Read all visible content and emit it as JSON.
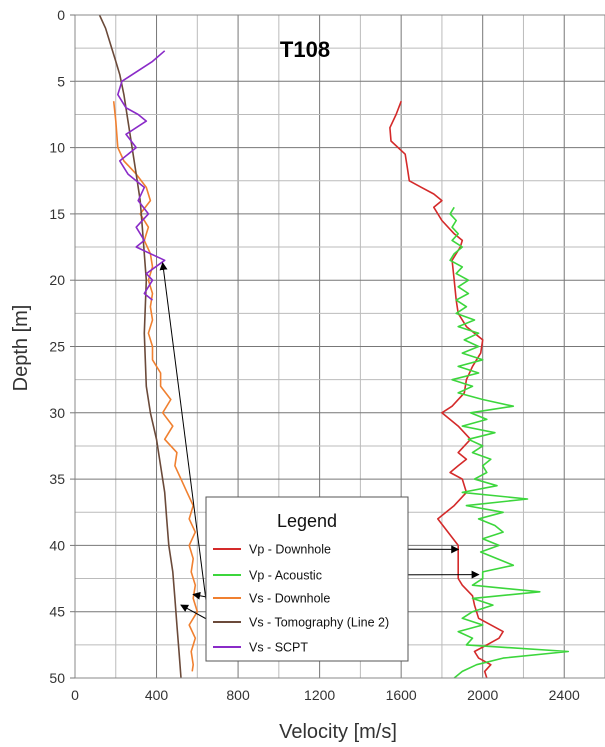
{
  "chart_data": {
    "type": "line",
    "title": "T108",
    "xlabel": "Velocity [m/s]",
    "ylabel": "Depth [m]",
    "xlim": [
      0,
      2600
    ],
    "ylim": [
      50,
      0
    ],
    "x_ticks": [
      "0",
      "400",
      "800",
      "1200",
      "1600",
      "2000",
      "2400"
    ],
    "y_ticks": [
      "0",
      "5",
      "10",
      "15",
      "20",
      "25",
      "30",
      "35",
      "40",
      "45",
      "50"
    ],
    "grid": true,
    "legend_title": "Legend",
    "legend_position": "bottom-center",
    "series": [
      {
        "name": "Vp - Downhole",
        "color": "#d42a2a",
        "points": [
          [
            1600,
            6.5
          ],
          [
            1575,
            7.5
          ],
          [
            1545,
            8.5
          ],
          [
            1550,
            9.5
          ],
          [
            1620,
            10.5
          ],
          [
            1630,
            11.5
          ],
          [
            1640,
            12.5
          ],
          [
            1700,
            13.0
          ],
          [
            1760,
            13.5
          ],
          [
            1800,
            14.0
          ],
          [
            1760,
            14.5
          ],
          [
            1800,
            15.5
          ],
          [
            1860,
            16.5
          ],
          [
            1900,
            17.0
          ],
          [
            1890,
            17.5
          ],
          [
            1850,
            18.5
          ],
          [
            1860,
            20.0
          ],
          [
            1870,
            21.5
          ],
          [
            1880,
            22.5
          ],
          [
            1920,
            23.5
          ],
          [
            2000,
            24.5
          ],
          [
            1990,
            25.5
          ],
          [
            1950,
            26.5
          ],
          [
            1920,
            27.5
          ],
          [
            1910,
            28.5
          ],
          [
            1850,
            29.5
          ],
          [
            1800,
            30.0
          ],
          [
            1880,
            31.0
          ],
          [
            1940,
            32.0
          ],
          [
            1880,
            33.0
          ],
          [
            1920,
            33.5
          ],
          [
            1880,
            34.0
          ],
          [
            1840,
            34.5
          ],
          [
            1900,
            35.0
          ],
          [
            1920,
            36.0
          ],
          [
            1860,
            37.0
          ],
          [
            1780,
            38.0
          ],
          [
            1830,
            39.0
          ],
          [
            1880,
            40.0
          ],
          [
            1880,
            41.0
          ],
          [
            1880,
            42.5
          ],
          [
            1900,
            43.0
          ],
          [
            1950,
            43.8
          ],
          [
            1960,
            44.5
          ],
          [
            1980,
            45.5
          ],
          [
            2100,
            46.5
          ],
          [
            2080,
            47.0
          ],
          [
            2020,
            47.5
          ],
          [
            1960,
            48.0
          ],
          [
            1980,
            48.5
          ],
          [
            2040,
            49.0
          ],
          [
            2010,
            49.5
          ],
          [
            2020,
            50.0
          ]
        ]
      },
      {
        "name": "Vp - Acoustic",
        "color": "#3cd63c",
        "points": [
          [
            1860,
            14.5
          ],
          [
            1840,
            15.0
          ],
          [
            1870,
            15.5
          ],
          [
            1850,
            16.0
          ],
          [
            1880,
            16.5
          ],
          [
            1850,
            17.0
          ],
          [
            1900,
            17.5
          ],
          [
            1860,
            18.0
          ],
          [
            1840,
            18.5
          ],
          [
            1900,
            19.0
          ],
          [
            1870,
            19.5
          ],
          [
            1930,
            20.0
          ],
          [
            1880,
            20.5
          ],
          [
            1930,
            21.0
          ],
          [
            1870,
            21.5
          ],
          [
            1920,
            22.0
          ],
          [
            1870,
            22.5
          ],
          [
            1960,
            23.0
          ],
          [
            1880,
            23.5
          ],
          [
            1980,
            24.0
          ],
          [
            1910,
            24.5
          ],
          [
            1980,
            25.0
          ],
          [
            1900,
            25.5
          ],
          [
            2000,
            26.0
          ],
          [
            1880,
            26.5
          ],
          [
            1980,
            27.0
          ],
          [
            1850,
            27.5
          ],
          [
            1950,
            28.0
          ],
          [
            1880,
            28.5
          ],
          [
            2000,
            29.0
          ],
          [
            2150,
            29.5
          ],
          [
            1940,
            30.0
          ],
          [
            2020,
            30.5
          ],
          [
            1900,
            31.0
          ],
          [
            2060,
            31.5
          ],
          [
            1930,
            32.0
          ],
          [
            2000,
            32.5
          ],
          [
            1950,
            33.0
          ],
          [
            2040,
            33.5
          ],
          [
            2000,
            34.0
          ],
          [
            2020,
            34.5
          ],
          [
            1960,
            35.0
          ],
          [
            2070,
            35.5
          ],
          [
            1900,
            36.0
          ],
          [
            2220,
            36.5
          ],
          [
            1920,
            37.0
          ],
          [
            2100,
            37.5
          ],
          [
            1980,
            38.0
          ],
          [
            2060,
            38.5
          ],
          [
            2100,
            39.0
          ],
          [
            2000,
            39.5
          ],
          [
            2080,
            40.0
          ],
          [
            1990,
            40.5
          ],
          [
            2150,
            41.5
          ],
          [
            2000,
            42.0
          ],
          [
            2000,
            42.5
          ],
          [
            1950,
            43.0
          ],
          [
            2280,
            43.5
          ],
          [
            1950,
            44.0
          ],
          [
            2050,
            44.5
          ],
          [
            1950,
            45.0
          ],
          [
            1900,
            45.5
          ],
          [
            2000,
            46.0
          ],
          [
            1880,
            46.5
          ],
          [
            1950,
            47.0
          ],
          [
            1920,
            47.5
          ],
          [
            2420,
            48.0
          ],
          [
            2100,
            48.5
          ],
          [
            1970,
            49.0
          ],
          [
            1900,
            49.5
          ],
          [
            1860,
            50.0
          ]
        ]
      },
      {
        "name": "Vs - Downhole",
        "color": "#f08030",
        "points": [
          [
            190,
            6.5
          ],
          [
            200,
            8.0
          ],
          [
            210,
            10.0
          ],
          [
            240,
            11.0
          ],
          [
            300,
            12.0
          ],
          [
            350,
            13.0
          ],
          [
            370,
            14.0
          ],
          [
            320,
            15.0
          ],
          [
            360,
            16.0
          ],
          [
            340,
            17.0
          ],
          [
            370,
            18.0
          ],
          [
            380,
            19.0
          ],
          [
            360,
            20.0
          ],
          [
            380,
            21.0
          ],
          [
            370,
            22.0
          ],
          [
            380,
            23.0
          ],
          [
            360,
            24.0
          ],
          [
            380,
            25.0
          ],
          [
            380,
            26.0
          ],
          [
            420,
            27.0
          ],
          [
            420,
            28.0
          ],
          [
            470,
            29.0
          ],
          [
            430,
            30.0
          ],
          [
            480,
            31.0
          ],
          [
            440,
            32.0
          ],
          [
            500,
            33.0
          ],
          [
            490,
            34.0
          ],
          [
            520,
            35.0
          ],
          [
            550,
            36.0
          ],
          [
            580,
            37.0
          ],
          [
            560,
            38.0
          ],
          [
            590,
            39.0
          ],
          [
            560,
            40.0
          ],
          [
            580,
            41.0
          ],
          [
            570,
            42.0
          ],
          [
            590,
            43.0
          ],
          [
            580,
            44.0
          ],
          [
            600,
            45.0
          ],
          [
            560,
            46.0
          ],
          [
            590,
            47.0
          ],
          [
            570,
            48.0
          ],
          [
            580,
            49.0
          ],
          [
            575,
            49.5
          ]
        ]
      },
      {
        "name": "Vs - Tomography (Line 2)",
        "color": "#6b4a3a",
        "points": [
          [
            120,
            0.0
          ],
          [
            150,
            1.0
          ],
          [
            180,
            2.5
          ],
          [
            200,
            3.5
          ],
          [
            220,
            4.5
          ],
          [
            240,
            6.0
          ],
          [
            260,
            8.0
          ],
          [
            280,
            10.0
          ],
          [
            300,
            12.0
          ],
          [
            320,
            14.0
          ],
          [
            330,
            16.0
          ],
          [
            340,
            18.0
          ],
          [
            350,
            20.0
          ],
          [
            345,
            22.0
          ],
          [
            340,
            24.0
          ],
          [
            345,
            26.0
          ],
          [
            350,
            28.0
          ],
          [
            370,
            30.0
          ],
          [
            400,
            32.0
          ],
          [
            420,
            34.0
          ],
          [
            440,
            36.0
          ],
          [
            450,
            38.0
          ],
          [
            460,
            40.0
          ],
          [
            480,
            42.0
          ],
          [
            490,
            44.0
          ],
          [
            500,
            46.0
          ],
          [
            510,
            48.0
          ],
          [
            520,
            50.0
          ]
        ]
      },
      {
        "name": "Vs - SCPT",
        "color": "#8a2bc8",
        "points": [
          [
            440,
            2.7
          ],
          [
            380,
            3.5
          ],
          [
            230,
            5.0
          ],
          [
            210,
            6.0
          ],
          [
            250,
            7.0
          ],
          [
            310,
            7.5
          ],
          [
            350,
            8.0
          ],
          [
            250,
            9.0
          ],
          [
            300,
            10.0
          ],
          [
            220,
            11.0
          ],
          [
            260,
            12.0
          ],
          [
            340,
            13.0
          ],
          [
            310,
            14.0
          ],
          [
            360,
            15.0
          ],
          [
            300,
            16.0
          ],
          [
            340,
            17.0
          ],
          [
            300,
            17.5
          ],
          [
            370,
            18.0
          ],
          [
            440,
            18.5
          ],
          [
            350,
            19.5
          ],
          [
            380,
            20.0
          ],
          [
            340,
            21.0
          ],
          [
            380,
            21.5
          ]
        ]
      }
    ],
    "annotations": [
      {
        "from_series": "Vp - Downhole",
        "target": [
          1880,
          40.3
        ]
      },
      {
        "from_series": "Vp - Acoustic",
        "target": [
          1980,
          42.2
        ]
      },
      {
        "from_series": "Vs - Downhole",
        "target": [
          580,
          43.7
        ]
      },
      {
        "from_series": "Vs - Tomography (Line 2)",
        "target": [
          520,
          44.5
        ]
      },
      {
        "from_series": "Vs - SCPT",
        "target": [
          430,
          18.7
        ]
      }
    ]
  }
}
